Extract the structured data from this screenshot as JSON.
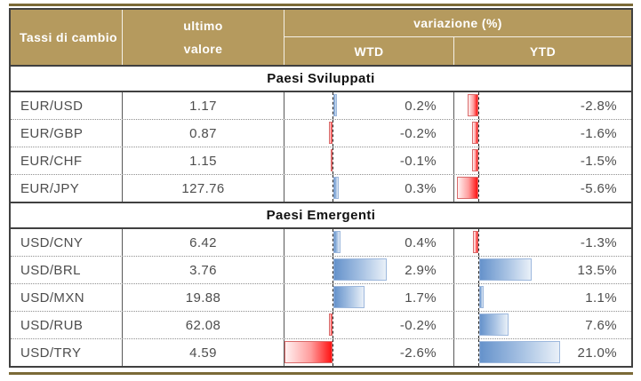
{
  "colors": {
    "header_gold": "#b59a5e",
    "stripe_gold": "#7b6a37",
    "positive_bar_blue": "#6592cb",
    "negative_bar_red": "#ff1212",
    "grid_dark": "#404040",
    "text_gray": "#4d4d4d"
  },
  "chart_data": {
    "type": "table",
    "title": "Tassi di cambio",
    "header": {
      "title": "Tassi di cambio",
      "ultimo_line1": "ultimo",
      "ultimo_line2": "valore",
      "variazione": "variazione (%)",
      "wtd": "WTD",
      "ytd": "YTD"
    },
    "columns": [
      "Tassi di cambio",
      "ultimo valore",
      "variazione (%) WTD",
      "variazione (%) YTD"
    ],
    "layout": {
      "legend": "none",
      "grid": "dotted-row-separators",
      "bar_style": "excel-gradient-databars, dashed zero axis",
      "wtd_axis_range_pct": [
        -2.6,
        6.6
      ],
      "ytd_axis_range_pct": [
        -6.2,
        39.6
      ]
    },
    "sections": [
      {
        "label": "Paesi Sviluppati",
        "rows": [
          {
            "pair": "EUR/USD",
            "value": "1.17",
            "wtd": 0.2,
            "wtd_label": "0.2%",
            "ytd": -2.8,
            "ytd_label": "-2.8%"
          },
          {
            "pair": "EUR/GBP",
            "value": "0.87",
            "wtd": -0.2,
            "wtd_label": "-0.2%",
            "ytd": -1.6,
            "ytd_label": "-1.6%"
          },
          {
            "pair": "EUR/CHF",
            "value": "1.15",
            "wtd": -0.1,
            "wtd_label": "-0.1%",
            "ytd": -1.5,
            "ytd_label": "-1.5%"
          },
          {
            "pair": "EUR/JPY",
            "value": "127.76",
            "wtd": 0.3,
            "wtd_label": "0.3%",
            "ytd": -5.6,
            "ytd_label": "-5.6%"
          }
        ]
      },
      {
        "label": "Paesi Emergenti",
        "rows": [
          {
            "pair": "USD/CNY",
            "value": "6.42",
            "wtd": 0.4,
            "wtd_label": "0.4%",
            "ytd": -1.3,
            "ytd_label": "-1.3%"
          },
          {
            "pair": "USD/BRL",
            "value": "3.76",
            "wtd": 2.9,
            "wtd_label": "2.9%",
            "ytd": 13.5,
            "ytd_label": "13.5%"
          },
          {
            "pair": "USD/MXN",
            "value": "19.88",
            "wtd": 1.7,
            "wtd_label": "1.7%",
            "ytd": 1.1,
            "ytd_label": "1.1%"
          },
          {
            "pair": "USD/RUB",
            "value": "62.08",
            "wtd": -0.2,
            "wtd_label": "-0.2%",
            "ytd": 7.6,
            "ytd_label": "7.6%"
          },
          {
            "pair": "USD/TRY",
            "value": "4.59",
            "wtd": -2.6,
            "wtd_label": "-2.6%",
            "ytd": 21.0,
            "ytd_label": "21.0%"
          }
        ]
      }
    ]
  }
}
